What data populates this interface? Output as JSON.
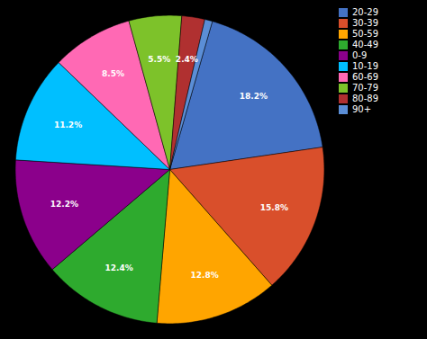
{
  "chart_data": {
    "type": "pie",
    "categories": [
      "20-29",
      "30-39",
      "50-59",
      "40-49",
      "0-9",
      "10-19",
      "60-69",
      "70-79",
      "80-89",
      "90+"
    ],
    "values": [
      18.2,
      15.8,
      12.8,
      12.4,
      12.2,
      11.2,
      8.5,
      5.5,
      2.4,
      0.8
    ],
    "value_labels": [
      "18.2%",
      "15.8%",
      "12.8%",
      "12.4%",
      "12.2%",
      "11.2%",
      "8.5%",
      "5.5%",
      "2.4%",
      null
    ],
    "colors": [
      "#4472C4",
      "#D94F2B",
      "#FFA500",
      "#2EAA2E",
      "#8B008B",
      "#00BFFF",
      "#FF69B4",
      "#7DC22A",
      "#B03030",
      "#5B8ED6"
    ],
    "data_labels": true,
    "legend": "right"
  }
}
